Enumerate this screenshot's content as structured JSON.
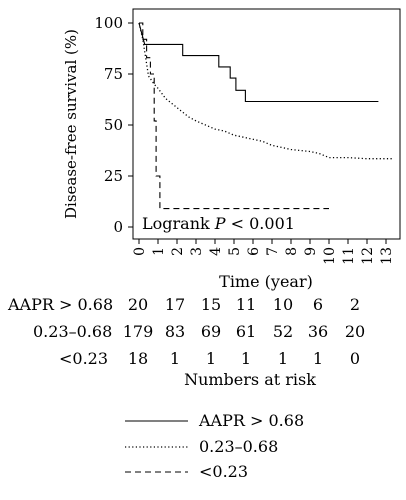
{
  "chart_data": {
    "type": "line",
    "step": true,
    "ylabel": "Disease-free survival (%)",
    "xlabel": "Time (year)",
    "xlim": [
      0,
      13
    ],
    "ylim": [
      0,
      100
    ],
    "xticks": [
      "0",
      "1",
      "2",
      "3",
      "4",
      "5",
      "6",
      "7",
      "8",
      "9",
      "10",
      "11",
      "12",
      "13"
    ],
    "yticks": [
      "0",
      "25",
      "50",
      "75",
      "100"
    ],
    "annotation": {
      "prefix": "Logrank ",
      "p": "P",
      "suffix": " < 0.001"
    },
    "series": [
      {
        "name": "AAPR > 0.68",
        "style": "solid",
        "points": [
          [
            0,
            100
          ],
          [
            0.3,
            89.5
          ],
          [
            2.3,
            89.5
          ],
          [
            2.3,
            84
          ],
          [
            4.2,
            84
          ],
          [
            4.2,
            78.5
          ],
          [
            4.8,
            78.5
          ],
          [
            4.8,
            73
          ],
          [
            5.1,
            73
          ],
          [
            5.1,
            67
          ],
          [
            5.6,
            67
          ],
          [
            5.6,
            61.5
          ],
          [
            12.6,
            61.5
          ]
        ]
      },
      {
        "name": "0.23–0.68",
        "style": "dotted",
        "points": [
          [
            0,
            100
          ],
          [
            0.2,
            92
          ],
          [
            0.5,
            74
          ],
          [
            0.8,
            70
          ],
          [
            1.0,
            68
          ],
          [
            1.4,
            63
          ],
          [
            1.8,
            60
          ],
          [
            2.2,
            57
          ],
          [
            2.6,
            54
          ],
          [
            3.0,
            52
          ],
          [
            3.5,
            50
          ],
          [
            4.0,
            48
          ],
          [
            4.5,
            47
          ],
          [
            5.0,
            45
          ],
          [
            5.5,
            44
          ],
          [
            6.0,
            43
          ],
          [
            6.5,
            42
          ],
          [
            7.0,
            40
          ],
          [
            7.5,
            39
          ],
          [
            8.0,
            38
          ],
          [
            9.0,
            37
          ],
          [
            9.5,
            36
          ],
          [
            10.0,
            34
          ],
          [
            11.0,
            34
          ],
          [
            12.0,
            33.5
          ],
          [
            13.3,
            33.5
          ]
        ]
      },
      {
        "name": "<0.23",
        "style": "dashed",
        "points": [
          [
            0,
            100
          ],
          [
            0.2,
            100
          ],
          [
            0.2,
            92
          ],
          [
            0.4,
            92
          ],
          [
            0.4,
            83
          ],
          [
            0.6,
            83
          ],
          [
            0.6,
            75
          ],
          [
            0.8,
            75
          ],
          [
            0.8,
            52
          ],
          [
            0.9,
            52
          ],
          [
            0.9,
            25
          ],
          [
            1.1,
            25
          ],
          [
            1.1,
            9
          ],
          [
            10.0,
            9
          ]
        ]
      }
    ],
    "risk_table": {
      "title": "Numbers at risk",
      "rows": [
        {
          "label": "AAPR > 0.68",
          "values": [
            "20",
            "17",
            "15",
            "11",
            "10",
            "6",
            "2"
          ]
        },
        {
          "label": "0.23–0.68",
          "values": [
            "179",
            "83",
            "69",
            "61",
            "52",
            "36",
            "20"
          ]
        },
        {
          "label": "<0.23",
          "values": [
            "18",
            "1",
            "1",
            "1",
            "1",
            "1",
            "0"
          ]
        }
      ]
    },
    "legend": {
      "placement": "bottom",
      "entries": [
        {
          "label": "AAPR > 0.68",
          "style": "solid"
        },
        {
          "label": "0.23–0.68",
          "style": "dotted"
        },
        {
          "label": "<0.23",
          "style": "dashed"
        }
      ]
    }
  }
}
